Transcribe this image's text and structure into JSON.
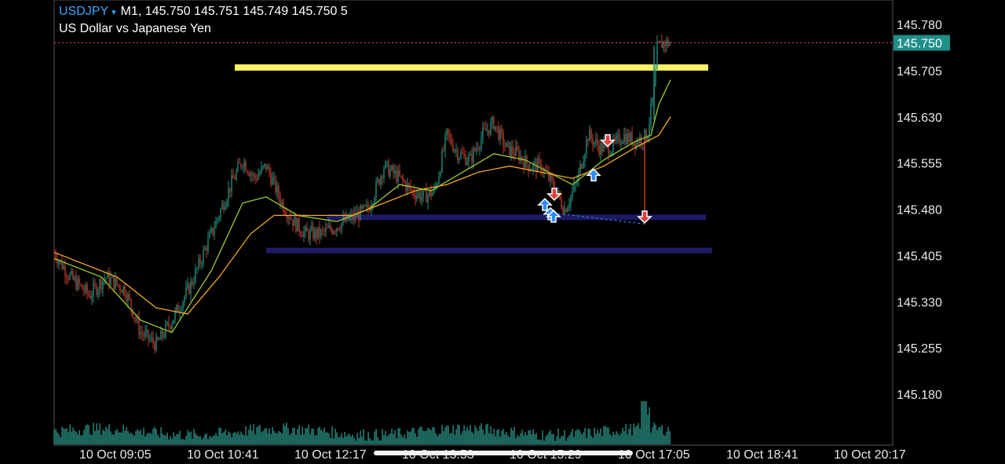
{
  "header": {
    "symbol": "USDJPY",
    "caret": "▾",
    "ohlc_line": "M1, 145.750 145.751 145.749 145.750 5",
    "description": "US Dollar vs Japanese Yen"
  },
  "colors": {
    "background": "#000000",
    "bull": "#1f8f7f",
    "bear": "#c0392b",
    "fast_ma": "#9acd32",
    "slow_ma": "#f5a623",
    "yellow_zone": "#ffef66",
    "blue_zone": "#1e1a66",
    "current_price_label": "#1f8f8a",
    "volume": "#1f6f66"
  },
  "chart_data": {
    "type": "candlestick",
    "symbol": "USDJPY",
    "timeframe": "M1",
    "ylim": [
      145.11,
      145.81
    ],
    "y_ticks": [
      "145.780",
      "145.705",
      "145.630",
      "145.555",
      "145.480",
      "145.405",
      "145.330",
      "145.255",
      "145.180"
    ],
    "x_ticks": [
      "10 Oct 09:05",
      "10 Oct 10:41",
      "10 Oct 12:17",
      "10 Oct 13:53",
      "10 Oct 15:29",
      "10 Oct 17:05",
      "10 Oct 18:41",
      "10 Oct 20:17"
    ],
    "current_price": "145.750",
    "close_path": [
      [
        0,
        145.41
      ],
      [
        20,
        145.37
      ],
      [
        45,
        145.34
      ],
      [
        65,
        145.37
      ],
      [
        90,
        145.35
      ],
      [
        110,
        145.28
      ],
      [
        130,
        145.26
      ],
      [
        150,
        145.3
      ],
      [
        175,
        145.36
      ],
      [
        200,
        145.44
      ],
      [
        225,
        145.52
      ],
      [
        240,
        145.56
      ],
      [
        255,
        145.53
      ],
      [
        270,
        145.55
      ],
      [
        290,
        145.49
      ],
      [
        305,
        145.46
      ],
      [
        320,
        145.44
      ],
      [
        340,
        145.44
      ],
      [
        355,
        145.45
      ],
      [
        370,
        145.46
      ],
      [
        385,
        145.47
      ],
      [
        400,
        145.48
      ],
      [
        420,
        145.55
      ],
      [
        440,
        145.53
      ],
      [
        455,
        145.51
      ],
      [
        470,
        145.5
      ],
      [
        485,
        145.51
      ],
      [
        500,
        145.6
      ],
      [
        515,
        145.57
      ],
      [
        530,
        145.56
      ],
      [
        545,
        145.6
      ],
      [
        560,
        145.62
      ],
      [
        575,
        145.58
      ],
      [
        590,
        145.57
      ],
      [
        605,
        145.55
      ],
      [
        620,
        145.55
      ],
      [
        635,
        145.52
      ],
      [
        650,
        145.48
      ],
      [
        665,
        145.52
      ],
      [
        680,
        145.6
      ],
      [
        695,
        145.58
      ],
      [
        710,
        145.58
      ],
      [
        725,
        145.6
      ],
      [
        740,
        145.59
      ],
      [
        755,
        145.6
      ],
      [
        765,
        145.68
      ],
      [
        768,
        145.74
      ],
      [
        775,
        145.75
      ],
      [
        785,
        145.75
      ]
    ],
    "fast_ma": [
      [
        0,
        145.4
      ],
      [
        60,
        145.37
      ],
      [
        110,
        145.3
      ],
      [
        150,
        145.28
      ],
      [
        200,
        145.38
      ],
      [
        240,
        145.49
      ],
      [
        270,
        145.5
      ],
      [
        310,
        145.47
      ],
      [
        360,
        145.46
      ],
      [
        400,
        145.48
      ],
      [
        440,
        145.52
      ],
      [
        480,
        145.51
      ],
      [
        520,
        145.54
      ],
      [
        560,
        145.57
      ],
      [
        600,
        145.56
      ],
      [
        630,
        145.54
      ],
      [
        660,
        145.52
      ],
      [
        700,
        145.56
      ],
      [
        740,
        145.59
      ],
      [
        760,
        145.6
      ],
      [
        770,
        145.65
      ],
      [
        785,
        145.69
      ]
    ],
    "slow_ma": [
      [
        0,
        145.41
      ],
      [
        80,
        145.37
      ],
      [
        130,
        145.32
      ],
      [
        170,
        145.31
      ],
      [
        210,
        145.37
      ],
      [
        250,
        145.44
      ],
      [
        280,
        145.47
      ],
      [
        320,
        145.47
      ],
      [
        380,
        145.47
      ],
      [
        420,
        145.49
      ],
      [
        460,
        145.51
      ],
      [
        500,
        145.52
      ],
      [
        540,
        145.54
      ],
      [
        580,
        145.55
      ],
      [
        620,
        145.54
      ],
      [
        660,
        145.53
      ],
      [
        700,
        145.55
      ],
      [
        740,
        145.58
      ],
      [
        770,
        145.6
      ],
      [
        785,
        145.63
      ]
    ],
    "zones": [
      {
        "color": "yellow",
        "price": 145.71,
        "x_from": 230,
        "x_to": 833
      },
      {
        "color": "blue",
        "price": 145.467,
        "x_from": 347,
        "x_to": 830
      },
      {
        "color": "blue",
        "price": 145.413,
        "x_from": 270,
        "x_to": 838
      }
    ],
    "buy_signals": [
      [
        625,
        145.487
      ],
      [
        632,
        145.472
      ],
      [
        636,
        145.468
      ],
      [
        687,
        145.535
      ]
    ],
    "sell_signals": [
      [
        637,
        145.505
      ],
      [
        705,
        145.592
      ],
      [
        752,
        145.468
      ]
    ],
    "volume_hist": "M1 tick volume, spike near 17:05"
  }
}
